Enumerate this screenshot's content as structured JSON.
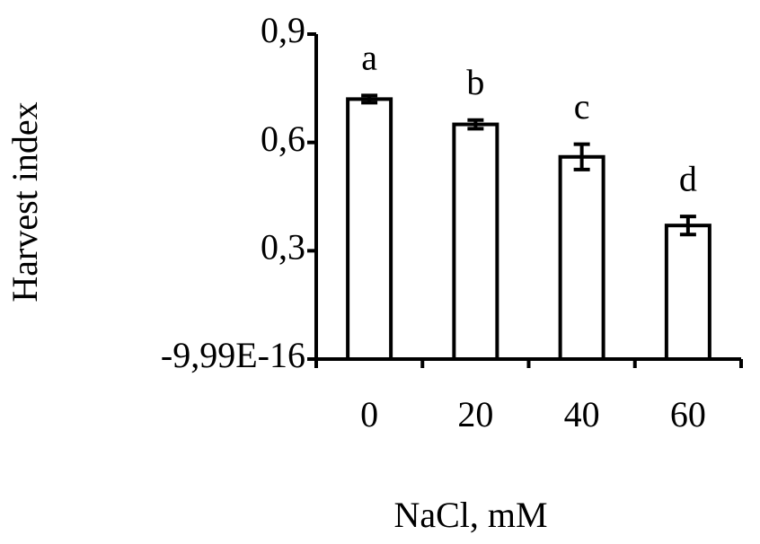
{
  "chart_data": {
    "type": "bar",
    "categories": [
      "0",
      "20",
      "40",
      "60"
    ],
    "values": [
      0.72,
      0.65,
      0.56,
      0.37
    ],
    "errors": [
      0.01,
      0.012,
      0.035,
      0.025
    ],
    "annotations": [
      "a",
      "b",
      "c",
      "d"
    ],
    "color": "#ffffff",
    "edge_color": "#000000",
    "xlabel": "NaCl, mM",
    "ylabel": "Harvest index",
    "ylim": [
      -9.99e-16,
      0.9
    ],
    "yticks": [
      {
        "value": -9.99e-16,
        "label": "-9,99E-16"
      },
      {
        "value": 0.3,
        "label": "0,3"
      },
      {
        "value": 0.6,
        "label": "0,6"
      },
      {
        "value": 0.9,
        "label": "0,9"
      }
    ],
    "grid": false
  }
}
